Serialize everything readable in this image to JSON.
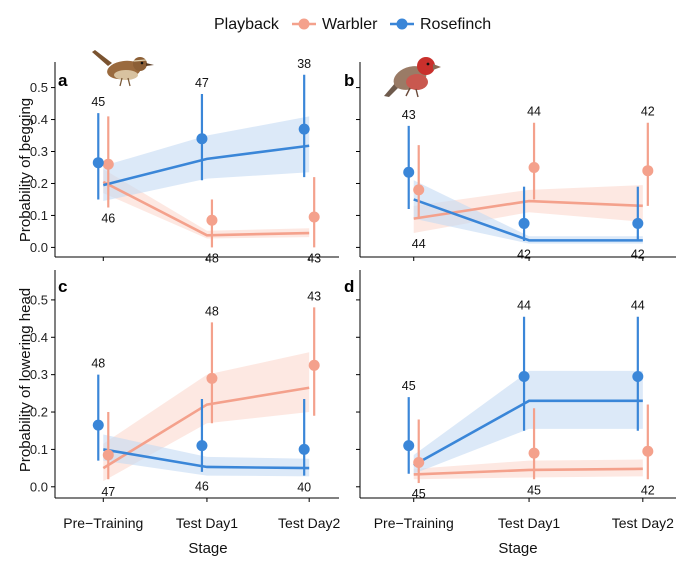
{
  "legend": {
    "title": "Playback",
    "items": [
      {
        "name": "Warbler",
        "color": "#f4a18c"
      },
      {
        "name": "Rosefinch",
        "color": "#3a86d8"
      }
    ]
  },
  "ylabels": {
    "top": "Probability of begging",
    "bottom": "Probability of lowering head"
  },
  "xlabel": "Stage",
  "birds": {
    "warbler": "warbler-illustration",
    "rosefinch": "rosefinch-illustration"
  },
  "colors": {
    "warbler": "#f4a18c",
    "warbler_band": "#fbd9cf",
    "rosefinch": "#3a86d8",
    "rosefinch_band": "#c4dbf4",
    "axis": "#000000"
  },
  "chart_data": [
    {
      "panel": "a",
      "type": "line",
      "categories": [
        "Pre−Training",
        "Test Day1",
        "Test Day2"
      ],
      "ylim": [
        -0.03,
        0.58
      ],
      "yticks": [
        0.0,
        0.1,
        0.2,
        0.3,
        0.4,
        0.5
      ],
      "ytick_labels": [
        "0.0",
        "0.1",
        "0.2",
        "0.3",
        "0.4",
        "0.5"
      ],
      "series": [
        {
          "name": "Warbler",
          "points": [
            0.26,
            0.085,
            0.095
          ],
          "err_lo": [
            0.125,
            0.0,
            0.0
          ],
          "err_hi": [
            0.41,
            0.15,
            0.22
          ],
          "fit": [
            0.205,
            0.038,
            0.045
          ],
          "band_lo": [
            0.17,
            0.028,
            0.032
          ],
          "band_hi": [
            0.245,
            0.052,
            0.06
          ],
          "n": [
            "46",
            "48",
            "43"
          ],
          "n_pos": [
            "below",
            "below",
            "below"
          ]
        },
        {
          "name": "Rosefinch",
          "points": [
            0.265,
            0.34,
            0.37
          ],
          "err_lo": [
            0.15,
            0.21,
            0.22
          ],
          "err_hi": [
            0.42,
            0.48,
            0.54
          ],
          "fit": [
            0.195,
            0.277,
            0.318
          ],
          "band_lo": [
            0.145,
            0.215,
            0.235
          ],
          "band_hi": [
            0.255,
            0.35,
            0.41
          ],
          "n": [
            "45",
            "47",
            "38"
          ],
          "n_pos": [
            "above",
            "above",
            "above"
          ]
        }
      ]
    },
    {
      "panel": "b",
      "type": "line",
      "categories": [
        "Pre−Training",
        "Test Day1",
        "Test Day2"
      ],
      "ylim": [
        -0.03,
        0.58
      ],
      "yticks": [
        0.0,
        0.1,
        0.2,
        0.3,
        0.4,
        0.5
      ],
      "ytick_labels": [
        "0.0",
        "0.1",
        "0.2",
        "0.3",
        "0.4",
        "0.5"
      ],
      "series": [
        {
          "name": "Warbler",
          "points": [
            0.18,
            0.25,
            0.24
          ],
          "err_lo": [
            0.09,
            0.15,
            0.13
          ],
          "err_hi": [
            0.32,
            0.39,
            0.39
          ],
          "fit": [
            0.09,
            0.145,
            0.13
          ],
          "band_lo": [
            0.045,
            0.11,
            0.08
          ],
          "band_hi": [
            0.13,
            0.18,
            0.195
          ],
          "n": [
            "44",
            "44",
            "42"
          ],
          "n_pos": [
            "below",
            "above",
            "above"
          ]
        },
        {
          "name": "Rosefinch",
          "points": [
            0.235,
            0.075,
            0.075
          ],
          "err_lo": [
            0.12,
            0.02,
            0.02
          ],
          "err_hi": [
            0.38,
            0.19,
            0.19
          ],
          "fit": [
            0.15,
            0.022,
            0.022
          ],
          "band_lo": [
            0.09,
            0.012,
            0.012
          ],
          "band_hi": [
            0.21,
            0.035,
            0.035
          ],
          "n": [
            "43",
            "42",
            "42"
          ],
          "n_pos": [
            "above",
            "below",
            "below"
          ]
        }
      ]
    },
    {
      "panel": "c",
      "type": "line",
      "categories": [
        "Pre−Training",
        "Test Day1",
        "Test Day2"
      ],
      "ylim": [
        -0.03,
        0.58
      ],
      "yticks": [
        0.0,
        0.1,
        0.2,
        0.3,
        0.4,
        0.5
      ],
      "ytick_labels": [
        "0.0",
        "0.1",
        "0.2",
        "0.3",
        "0.4",
        "0.5"
      ],
      "series": [
        {
          "name": "Warbler",
          "points": [
            0.085,
            0.29,
            0.325
          ],
          "err_lo": [
            0.02,
            0.17,
            0.19
          ],
          "err_hi": [
            0.2,
            0.44,
            0.48
          ],
          "fit": [
            0.05,
            0.22,
            0.265
          ],
          "band_lo": [
            0.015,
            0.17,
            0.2
          ],
          "band_hi": [
            0.115,
            0.3,
            0.36
          ],
          "n": [
            "47",
            "48",
            "43"
          ],
          "n_pos": [
            "below",
            "above",
            "above"
          ]
        },
        {
          "name": "Rosefinch",
          "points": [
            0.165,
            0.11,
            0.1
          ],
          "err_lo": [
            0.07,
            0.04,
            0.03
          ],
          "err_hi": [
            0.3,
            0.235,
            0.235
          ],
          "fit": [
            0.1,
            0.053,
            0.05
          ],
          "band_lo": [
            0.07,
            0.03,
            0.028
          ],
          "band_hi": [
            0.14,
            0.08,
            0.075
          ],
          "n": [
            "48",
            "46",
            "40"
          ],
          "n_pos": [
            "above",
            "below",
            "below"
          ]
        }
      ]
    },
    {
      "panel": "d",
      "type": "line",
      "categories": [
        "Pre−Training",
        "Test Day1",
        "Test Day2"
      ],
      "ylim": [
        -0.03,
        0.58
      ],
      "yticks": [
        0.0,
        0.1,
        0.2,
        0.3,
        0.4,
        0.5
      ],
      "ytick_labels": [
        "0.0",
        "0.1",
        "0.2",
        "0.3",
        "0.4",
        "0.5"
      ],
      "series": [
        {
          "name": "Warbler",
          "points": [
            0.065,
            0.09,
            0.095
          ],
          "err_lo": [
            0.01,
            0.02,
            0.02
          ],
          "err_hi": [
            0.18,
            0.21,
            0.22
          ],
          "fit": [
            0.033,
            0.045,
            0.048
          ],
          "band_lo": [
            0.02,
            0.025,
            0.028
          ],
          "band_hi": [
            0.048,
            0.07,
            0.073
          ],
          "n": [
            "45",
            "45",
            "42"
          ],
          "n_pos": [
            "below",
            "below",
            "below"
          ]
        },
        {
          "name": "Rosefinch",
          "points": [
            0.11,
            0.295,
            0.295
          ],
          "err_lo": [
            0.035,
            0.15,
            0.15
          ],
          "err_hi": [
            0.24,
            0.455,
            0.455
          ],
          "fit": [
            0.058,
            0.23,
            0.23
          ],
          "band_lo": [
            0.035,
            0.155,
            0.155
          ],
          "band_hi": [
            0.085,
            0.31,
            0.31
          ],
          "n": [
            "45",
            "44",
            "44"
          ],
          "n_pos": [
            "above",
            "above",
            "above"
          ]
        }
      ]
    }
  ]
}
